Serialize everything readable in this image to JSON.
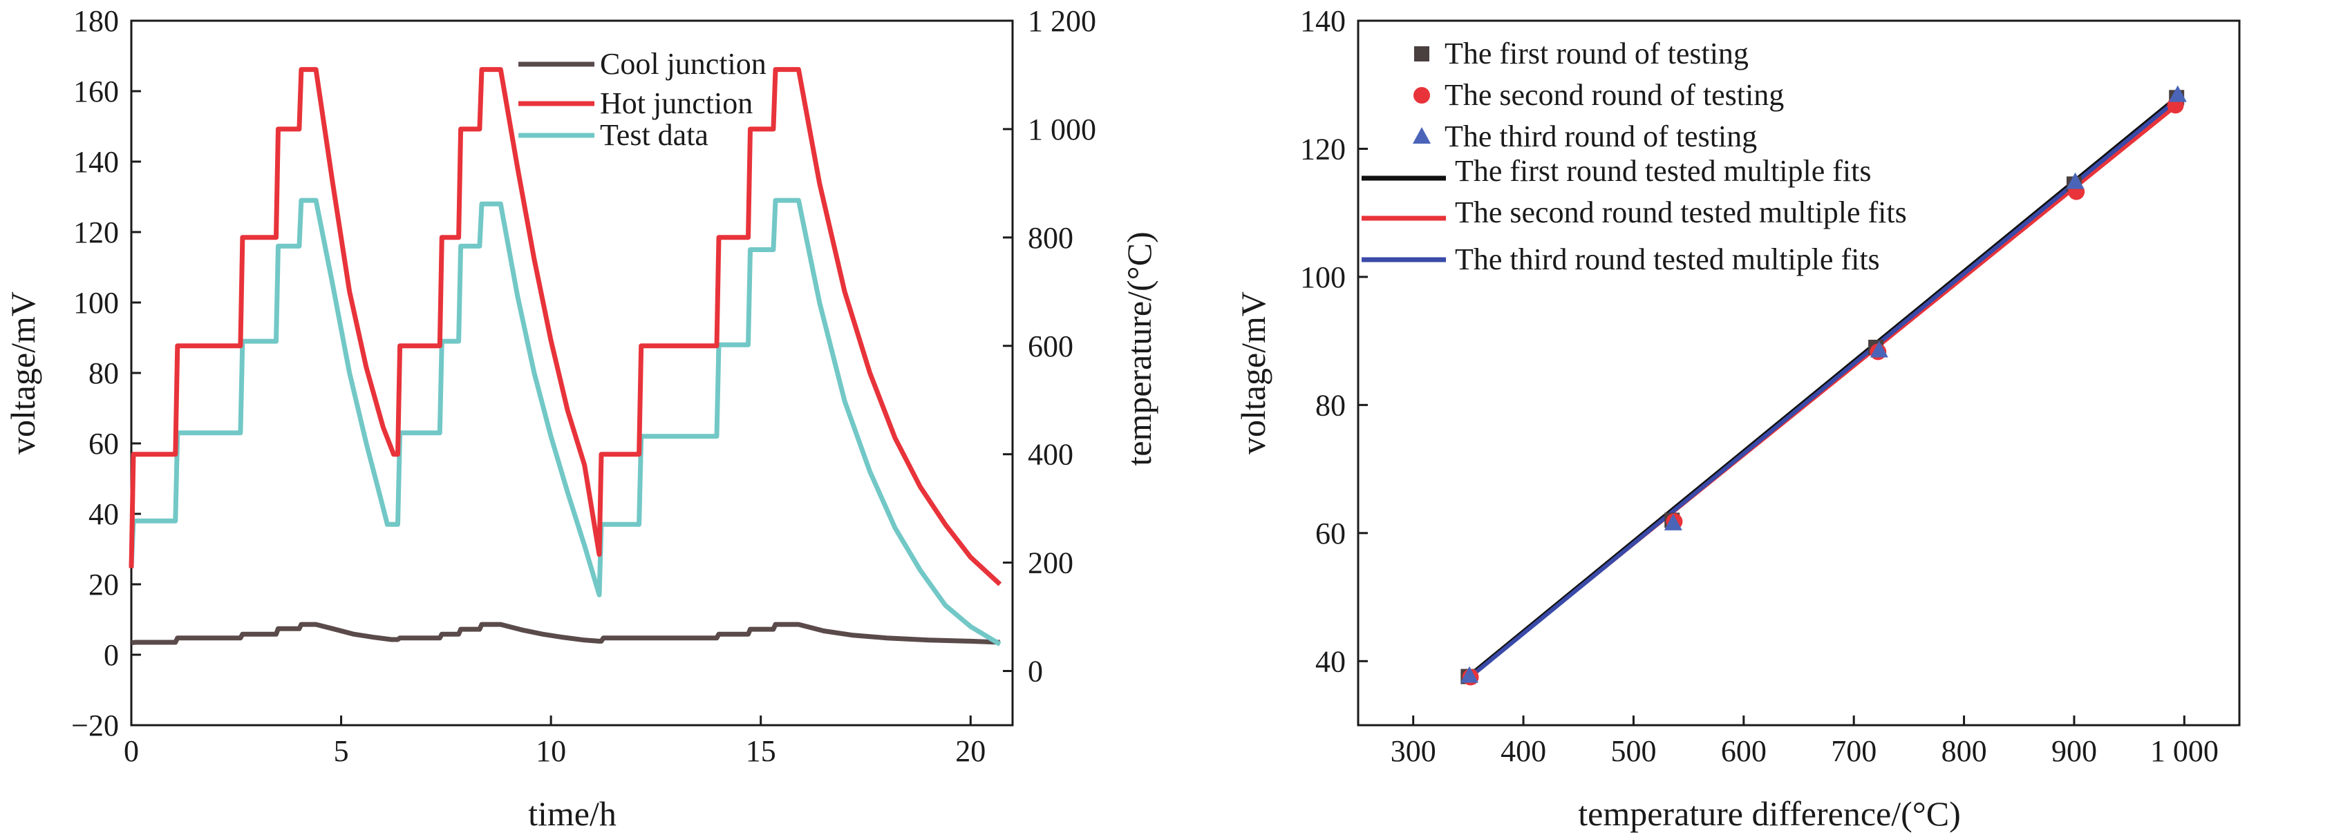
{
  "chart_data": [
    {
      "type": "line",
      "xlabel": "time/h",
      "ylabel": "voltage/mV",
      "y2label": "temperature/(°C)",
      "xlim": [
        0,
        21
      ],
      "ylim": [
        -20,
        180
      ],
      "y2lim": [
        -100,
        1200
      ],
      "xticks": [
        "0",
        "5",
        "10",
        "15",
        "20"
      ],
      "yticks": [
        "−20",
        "0",
        "20",
        "40",
        "60",
        "80",
        "100",
        "120",
        "140",
        "160",
        "180"
      ],
      "y2ticks": [
        "0",
        "200",
        "400",
        "600",
        "800",
        "1 000",
        "1 200"
      ],
      "legend_position": "top-center",
      "series": [
        {
          "name": "Cool junction",
          "axis": "right",
          "color": "#5a4a4a",
          "points": [
            [
              0,
              52
            ],
            [
              0.1,
              53
            ],
            [
              1.05,
              53
            ],
            [
              1.1,
              61
            ],
            [
              2.6,
              61
            ],
            [
              2.65,
              68
            ],
            [
              3.45,
              68
            ],
            [
              3.5,
              78
            ],
            [
              4,
              78
            ],
            [
              4.05,
              86
            ],
            [
              4.4,
              86
            ],
            [
              4.8,
              78
            ],
            [
              5.3,
              68
            ],
            [
              5.8,
              62
            ],
            [
              6.2,
              58
            ],
            [
              6.35,
              58
            ],
            [
              6.4,
              61
            ],
            [
              7.35,
              61
            ],
            [
              7.4,
              68
            ],
            [
              7.8,
              68
            ],
            [
              7.85,
              77
            ],
            [
              8.3,
              77
            ],
            [
              8.35,
              86
            ],
            [
              8.8,
              86
            ],
            [
              9.3,
              76
            ],
            [
              9.8,
              68
            ],
            [
              10.3,
              62
            ],
            [
              10.8,
              57
            ],
            [
              11.15,
              55
            ],
            [
              11.2,
              55
            ],
            [
              11.25,
              61
            ],
            [
              12.1,
              61
            ],
            [
              12.15,
              61
            ],
            [
              13.95,
              61
            ],
            [
              14,
              68
            ],
            [
              14.7,
              68
            ],
            [
              14.75,
              77
            ],
            [
              15.3,
              77
            ],
            [
              15.35,
              86
            ],
            [
              15.9,
              86
            ],
            [
              16.5,
              74
            ],
            [
              17.2,
              66
            ],
            [
              18,
              61
            ],
            [
              19,
              57
            ],
            [
              20,
              55
            ],
            [
              20.7,
              53
            ]
          ]
        },
        {
          "name": "Hot junction",
          "axis": "right",
          "color": "#e8333a",
          "points": [
            [
              0,
              190
            ],
            [
              0.05,
              400
            ],
            [
              1.05,
              400
            ],
            [
              1.1,
              600
            ],
            [
              2.6,
              600
            ],
            [
              2.65,
              800
            ],
            [
              3.45,
              800
            ],
            [
              3.5,
              1000
            ],
            [
              4,
              1000
            ],
            [
              4.05,
              1110
            ],
            [
              4.4,
              1110
            ],
            [
              4.8,
              900
            ],
            [
              5.2,
              700
            ],
            [
              5.6,
              560
            ],
            [
              6,
              450
            ],
            [
              6.25,
              400
            ],
            [
              6.35,
              400
            ],
            [
              6.4,
              600
            ],
            [
              7.35,
              600
            ],
            [
              7.4,
              800
            ],
            [
              7.8,
              800
            ],
            [
              7.85,
              1000
            ],
            [
              8.3,
              1000
            ],
            [
              8.35,
              1110
            ],
            [
              8.8,
              1110
            ],
            [
              9.2,
              930
            ],
            [
              9.6,
              760
            ],
            [
              10,
              610
            ],
            [
              10.4,
              480
            ],
            [
              10.8,
              380
            ],
            [
              11.15,
              215
            ],
            [
              11.2,
              400
            ],
            [
              12.1,
              400
            ],
            [
              12.15,
              600
            ],
            [
              13.95,
              600
            ],
            [
              14,
              800
            ],
            [
              14.7,
              800
            ],
            [
              14.75,
              1000
            ],
            [
              15.3,
              1000
            ],
            [
              15.35,
              1110
            ],
            [
              15.9,
              1110
            ],
            [
              16.4,
              900
            ],
            [
              17,
              700
            ],
            [
              17.6,
              550
            ],
            [
              18.2,
              430
            ],
            [
              18.8,
              340
            ],
            [
              19.4,
              270
            ],
            [
              20,
              210
            ],
            [
              20.7,
              160
            ]
          ]
        },
        {
          "name": "Test data",
          "axis": "left",
          "color": "#72c8c6",
          "points": [
            [
              0,
              25
            ],
            [
              0.05,
              38
            ],
            [
              1.05,
              38
            ],
            [
              1.1,
              63
            ],
            [
              2.6,
              63
            ],
            [
              2.65,
              89
            ],
            [
              3.45,
              89
            ],
            [
              3.5,
              116
            ],
            [
              4,
              116
            ],
            [
              4.05,
              129
            ],
            [
              4.4,
              129
            ],
            [
              4.8,
              105
            ],
            [
              5.2,
              80
            ],
            [
              5.6,
              60
            ],
            [
              5.95,
              44
            ],
            [
              6.1,
              37
            ],
            [
              6.35,
              37
            ],
            [
              6.4,
              63
            ],
            [
              7.35,
              63
            ],
            [
              7.4,
              89
            ],
            [
              7.8,
              89
            ],
            [
              7.85,
              116
            ],
            [
              8.3,
              116
            ],
            [
              8.35,
              128
            ],
            [
              8.8,
              128
            ],
            [
              9.2,
              102
            ],
            [
              9.6,
              80
            ],
            [
              10,
              62
            ],
            [
              10.4,
              46
            ],
            [
              10.8,
              31
            ],
            [
              11.15,
              17
            ],
            [
              11.2,
              37
            ],
            [
              12.1,
              37
            ],
            [
              12.15,
              62
            ],
            [
              13.95,
              62
            ],
            [
              14,
              88
            ],
            [
              14.7,
              88
            ],
            [
              14.75,
              115
            ],
            [
              15.3,
              115
            ],
            [
              15.35,
              129
            ],
            [
              15.9,
              129
            ],
            [
              16.4,
              100
            ],
            [
              17,
              72
            ],
            [
              17.6,
              52
            ],
            [
              18.2,
              36
            ],
            [
              18.8,
              24
            ],
            [
              19.4,
              14
            ],
            [
              20,
              8
            ],
            [
              20.7,
              3
            ]
          ]
        }
      ]
    },
    {
      "type": "scatter",
      "xlabel": "temperature difference/(°C)",
      "ylabel": "voltage/mV",
      "xlim": [
        250,
        1050
      ],
      "ylim": [
        30,
        140
      ],
      "xticks": [
        "300",
        "400",
        "500",
        "600",
        "700",
        "800",
        "900",
        "1 000"
      ],
      "yticks": [
        "40",
        "60",
        "80",
        "100",
        "120",
        "140"
      ],
      "legend_position": "top-left",
      "series": [
        {
          "name": "The first round of testing",
          "marker": "square",
          "color": "#4a4040",
          "x": [
            350,
            535,
            720,
            900,
            993
          ],
          "y": [
            37.6,
            62,
            89,
            114.5,
            128
          ]
        },
        {
          "name": "The second round of testing",
          "marker": "circle",
          "color": "#e8333a",
          "x": [
            352,
            537,
            722,
            902,
            992
          ],
          "y": [
            37.5,
            61.8,
            88.3,
            113.3,
            126.8
          ]
        },
        {
          "name": "The third round of testing",
          "marker": "triangle",
          "color": "#4a64b8",
          "x": [
            351,
            536,
            723,
            901,
            994
          ],
          "y": [
            37.7,
            61.5,
            88.5,
            114.8,
            128.4
          ]
        },
        {
          "name": "The first round tested multiple fits",
          "marker": "line",
          "color": "#111111",
          "x": [
            350,
            993
          ],
          "y": [
            37.6,
            128
          ]
        },
        {
          "name": "The second round tested multiple fits",
          "marker": "line",
          "color": "#e8333a",
          "x": [
            350,
            993
          ],
          "y": [
            37.5,
            126.8
          ]
        },
        {
          "name": "The third round tested multiple fits",
          "marker": "line",
          "color": "#3a4aa8",
          "x": [
            350,
            993
          ],
          "y": [
            37.3,
            127.6
          ]
        }
      ]
    }
  ]
}
